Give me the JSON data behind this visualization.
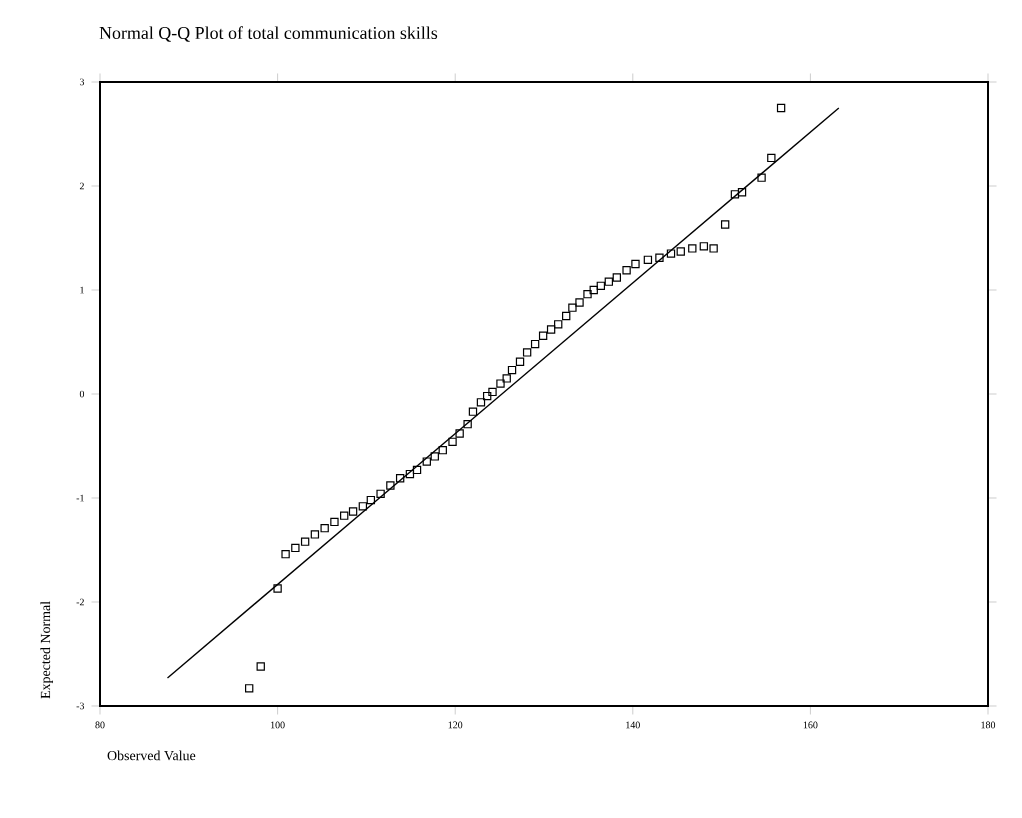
{
  "chart_data": {
    "type": "scatter",
    "title": "Normal Q-Q Plot of total communication skills",
    "xlabel": "Observed Value",
    "ylabel": "Expected Normal",
    "xlim": [
      80,
      180
    ],
    "xticks": [
      80,
      100,
      120,
      140,
      160,
      180
    ],
    "ylim": [
      -3,
      3
    ],
    "yticks": [
      -3,
      -2,
      -1,
      0,
      1,
      2,
      3
    ],
    "grid": false,
    "series": [
      {
        "marker": "square",
        "color": "#000000",
        "x": [
          96.8,
          98.1,
          100,
          100.9,
          102,
          103.1,
          104.2,
          105.3,
          106.4,
          107.5,
          108.5,
          109.6,
          110.5,
          111.6,
          112.7,
          113.8,
          114.9,
          115.7,
          116.8,
          117.7,
          118.6,
          119.7,
          120.5,
          121.4,
          122,
          122.9,
          123.6,
          124.2,
          125.1,
          125.8,
          126.4,
          127.3,
          128.1,
          129,
          129.9,
          130.8,
          131.6,
          132.5,
          133.2,
          134,
          134.9,
          135.6,
          136.4,
          137.3,
          138.2,
          139.3,
          140.3,
          141.7,
          143,
          144.3,
          145.4,
          146.7,
          148,
          149.1,
          150.4,
          151.5,
          152.3,
          154.5,
          155.6,
          156.7
        ],
        "values": [
          -2.83,
          -2.62,
          -1.87,
          -1.54,
          -1.48,
          -1.42,
          -1.35,
          -1.29,
          -1.23,
          -1.17,
          -1.13,
          -1.08,
          -1.02,
          -0.96,
          -0.88,
          -0.81,
          -0.77,
          -0.73,
          -0.65,
          -0.6,
          -0.54,
          -0.46,
          -0.38,
          -0.29,
          -0.17,
          -0.08,
          -0.02,
          0.02,
          0.1,
          0.15,
          0.23,
          0.31,
          0.4,
          0.48,
          0.56,
          0.62,
          0.67,
          0.75,
          0.83,
          0.88,
          0.96,
          1.0,
          1.04,
          1.08,
          1.12,
          1.19,
          1.25,
          1.29,
          1.31,
          1.35,
          1.37,
          1.4,
          1.42,
          1.4,
          1.63,
          1.92,
          1.94,
          2.08,
          2.27,
          2.75
        ]
      },
      {
        "type": "line",
        "marker": "none",
        "line_style": "solid",
        "color": "#000000",
        "x": [
          87.6,
          163.2
        ],
        "values": [
          -2.73,
          2.75
        ]
      }
    ]
  }
}
